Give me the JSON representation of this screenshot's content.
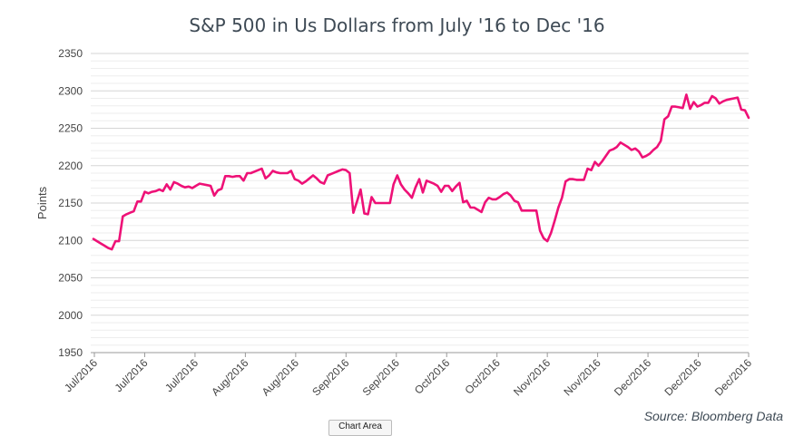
{
  "chart_data": {
    "type": "line",
    "title": "S&P 500 in Us Dollars from July '16 to Dec '16",
    "ylabel": "Points",
    "xlabel": "",
    "ylim": [
      1950,
      2350
    ],
    "yticks": [
      1950,
      2000,
      2050,
      2100,
      2150,
      2200,
      2250,
      2300,
      2350
    ],
    "xtick_labels": [
      "Jul/2016",
      "Jul/2016",
      "Jul/2016",
      "Aug/2016",
      "Aug/2016",
      "Sep/2016",
      "Sep/2016",
      "Oct/2016",
      "Oct/2016",
      "Nov/2016",
      "Nov/2016",
      "Dec/2016",
      "Dec/2016",
      "Dec/2016"
    ],
    "line_color": "#ee1177",
    "grid": true,
    "series": [
      {
        "values": [
          2102,
          2099,
          2096,
          2093,
          2090,
          2088,
          2099,
          2099,
          2132,
          2135,
          2137,
          2139,
          2152,
          2152,
          2165,
          2163,
          2165,
          2166,
          2168,
          2166,
          2175,
          2168,
          2178,
          2176,
          2173,
          2171,
          2172,
          2170,
          2173,
          2176,
          2175,
          2174,
          2173,
          2160,
          2167,
          2169,
          2186,
          2186,
          2185,
          2186,
          2186,
          2180,
          2190,
          2190,
          2192,
          2194,
          2196,
          2183,
          2187,
          2193,
          2191,
          2190,
          2190,
          2190,
          2193,
          2182,
          2180,
          2176,
          2179,
          2183,
          2187,
          2183,
          2178,
          2176,
          2187,
          2189,
          2191,
          2193,
          2195,
          2194,
          2190,
          2137,
          2152,
          2168,
          2136,
          2135,
          2158,
          2150,
          2150,
          2150,
          2150,
          2150,
          2175,
          2187,
          2175,
          2168,
          2163,
          2157,
          2171,
          2182,
          2164,
          2180,
          2178,
          2176,
          2173,
          2165,
          2173,
          2173,
          2166,
          2172,
          2177,
          2151,
          2153,
          2144,
          2144,
          2141,
          2138,
          2151,
          2157,
          2155,
          2155,
          2158,
          2162,
          2164,
          2160,
          2153,
          2151,
          2140,
          2140,
          2140,
          2140,
          2140,
          2113,
          2103,
          2099,
          2110,
          2126,
          2144,
          2157,
          2179,
          2182,
          2182,
          2181,
          2181,
          2181,
          2196,
          2194,
          2205,
          2200,
          2206,
          2213,
          2220,
          2222,
          2225,
          2231,
          2228,
          2225,
          2221,
          2223,
          2219,
          2211,
          2213,
          2216,
          2221,
          2225,
          2233,
          2262,
          2266,
          2279,
          2279,
          2278,
          2277,
          2295,
          2276,
          2285,
          2279,
          2281,
          2284,
          2284,
          2293,
          2290,
          2283,
          2286,
          2288,
          2289,
          2290,
          2291,
          2275,
          2274,
          2264
        ]
      }
    ]
  },
  "source": "Source: Bloomberg Data",
  "tooltip_tab": "Chart Area"
}
